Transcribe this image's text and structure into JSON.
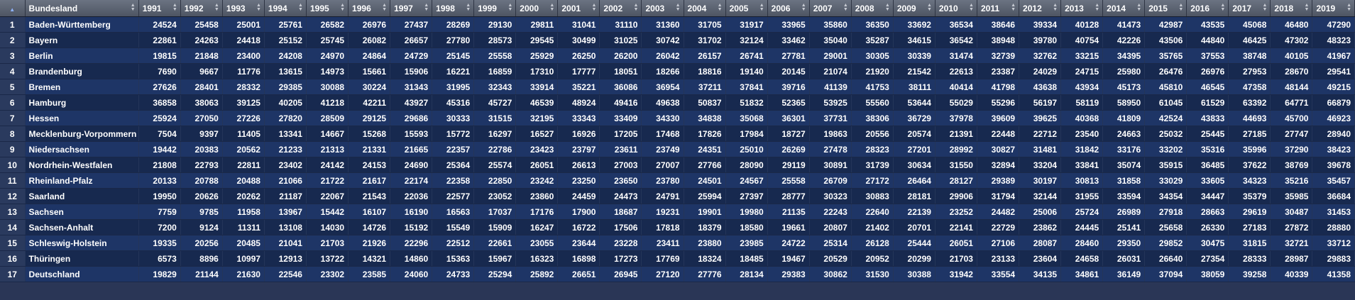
{
  "table": {
    "columns": [
      "Bundesland",
      "1991",
      "1992",
      "1993",
      "1994",
      "1995",
      "1996",
      "1997",
      "1998",
      "1999",
      "2000",
      "2001",
      "2002",
      "2003",
      "2004",
      "2005",
      "2006",
      "2007",
      "2008",
      "2009",
      "2010",
      "2011",
      "2012",
      "2013",
      "2014",
      "2015",
      "2016",
      "2017",
      "2018",
      "2019"
    ],
    "rows": [
      {
        "n": "1",
        "name": "Baden-Württemberg",
        "v": [
          "24524",
          "25458",
          "25001",
          "25761",
          "26582",
          "26976",
          "27437",
          "28269",
          "29130",
          "29811",
          "31041",
          "31110",
          "31360",
          "31705",
          "31917",
          "33965",
          "35860",
          "36350",
          "33692",
          "36534",
          "38646",
          "39334",
          "40128",
          "41473",
          "42987",
          "43535",
          "45068",
          "46480",
          "47290"
        ]
      },
      {
        "n": "2",
        "name": "Bayern",
        "v": [
          "22861",
          "24263",
          "24418",
          "25152",
          "25745",
          "26082",
          "26657",
          "27780",
          "28573",
          "29545",
          "30499",
          "31025",
          "30742",
          "31702",
          "32124",
          "33462",
          "35040",
          "35287",
          "34615",
          "36542",
          "38948",
          "39780",
          "40754",
          "42226",
          "43506",
          "44840",
          "46425",
          "47302",
          "48323"
        ]
      },
      {
        "n": "3",
        "name": "Berlin",
        "v": [
          "19815",
          "21848",
          "23400",
          "24208",
          "24970",
          "24864",
          "24729",
          "25145",
          "25558",
          "25929",
          "26250",
          "26200",
          "26042",
          "26157",
          "26741",
          "27781",
          "29001",
          "30305",
          "30339",
          "31474",
          "32739",
          "32762",
          "33215",
          "34395",
          "35765",
          "37553",
          "38748",
          "40105",
          "41967"
        ]
      },
      {
        "n": "4",
        "name": "Brandenburg",
        "v": [
          "7690",
          "9667",
          "11776",
          "13615",
          "14973",
          "15661",
          "15906",
          "16221",
          "16859",
          "17310",
          "17777",
          "18051",
          "18266",
          "18816",
          "19140",
          "20145",
          "21074",
          "21920",
          "21542",
          "22613",
          "23387",
          "24029",
          "24715",
          "25980",
          "26476",
          "26976",
          "27953",
          "28670",
          "29541"
        ]
      },
      {
        "n": "5",
        "name": "Bremen",
        "v": [
          "27626",
          "28401",
          "28332",
          "29385",
          "30088",
          "30224",
          "31343",
          "31995",
          "32343",
          "33914",
          "35221",
          "36086",
          "36954",
          "37211",
          "37841",
          "39716",
          "41139",
          "41753",
          "38111",
          "40414",
          "41798",
          "43638",
          "43934",
          "45173",
          "45810",
          "46545",
          "47358",
          "48144",
          "49215"
        ]
      },
      {
        "n": "6",
        "name": "Hamburg",
        "v": [
          "36858",
          "38063",
          "39125",
          "40205",
          "41218",
          "42211",
          "43927",
          "45316",
          "45727",
          "46539",
          "48924",
          "49416",
          "49638",
          "50837",
          "51832",
          "52365",
          "53925",
          "55560",
          "53644",
          "55029",
          "55296",
          "56197",
          "58119",
          "58950",
          "61045",
          "61529",
          "63392",
          "64771",
          "66879"
        ]
      },
      {
        "n": "7",
        "name": "Hessen",
        "v": [
          "25924",
          "27050",
          "27226",
          "27820",
          "28509",
          "29125",
          "29686",
          "30333",
          "31515",
          "32195",
          "33343",
          "33409",
          "34330",
          "34838",
          "35068",
          "36301",
          "37731",
          "38306",
          "36729",
          "37978",
          "39609",
          "39625",
          "40368",
          "41809",
          "42524",
          "43833",
          "44693",
          "45700",
          "46923"
        ]
      },
      {
        "n": "8",
        "name": "Mecklenburg-Vorpommern",
        "v": [
          "7504",
          "9397",
          "11405",
          "13341",
          "14667",
          "15268",
          "15593",
          "15772",
          "16297",
          "16527",
          "16926",
          "17205",
          "17468",
          "17826",
          "17984",
          "18727",
          "19863",
          "20556",
          "20574",
          "21391",
          "22448",
          "22712",
          "23540",
          "24663",
          "25032",
          "25445",
          "27185",
          "27747",
          "28940"
        ]
      },
      {
        "n": "9",
        "name": "Niedersachsen",
        "v": [
          "19442",
          "20383",
          "20562",
          "21233",
          "21313",
          "21331",
          "21665",
          "22357",
          "22786",
          "23423",
          "23797",
          "23611",
          "23749",
          "24351",
          "25010",
          "26269",
          "27478",
          "28323",
          "27201",
          "28992",
          "30827",
          "31481",
          "31842",
          "33176",
          "33202",
          "35316",
          "35996",
          "37290",
          "38423"
        ]
      },
      {
        "n": "10",
        "name": "Nordrhein-Westfalen",
        "v": [
          "21808",
          "22793",
          "22811",
          "23402",
          "24142",
          "24153",
          "24690",
          "25364",
          "25574",
          "26051",
          "26613",
          "27003",
          "27007",
          "27766",
          "28090",
          "29119",
          "30891",
          "31739",
          "30634",
          "31550",
          "32894",
          "33204",
          "33841",
          "35074",
          "35915",
          "36485",
          "37622",
          "38769",
          "39678"
        ]
      },
      {
        "n": "11",
        "name": "Rheinland-Pfalz",
        "v": [
          "20133",
          "20788",
          "20488",
          "21066",
          "21722",
          "21617",
          "22174",
          "22358",
          "22850",
          "23242",
          "23250",
          "23650",
          "23780",
          "24501",
          "24567",
          "25558",
          "26709",
          "27172",
          "26464",
          "28127",
          "29389",
          "30197",
          "30813",
          "31858",
          "33029",
          "33605",
          "34323",
          "35216",
          "35457"
        ]
      },
      {
        "n": "12",
        "name": "Saarland",
        "v": [
          "19950",
          "20626",
          "20262",
          "21187",
          "22067",
          "21543",
          "22036",
          "22577",
          "23052",
          "23860",
          "24459",
          "24473",
          "24791",
          "25994",
          "27397",
          "28777",
          "30323",
          "30883",
          "28181",
          "29906",
          "31794",
          "32144",
          "31955",
          "33594",
          "34354",
          "34447",
          "35379",
          "35985",
          "36684"
        ]
      },
      {
        "n": "13",
        "name": "Sachsen",
        "v": [
          "7759",
          "9785",
          "11958",
          "13967",
          "15442",
          "16107",
          "16190",
          "16563",
          "17037",
          "17176",
          "17900",
          "18687",
          "19231",
          "19901",
          "19980",
          "21135",
          "22243",
          "22640",
          "22139",
          "23252",
          "24482",
          "25006",
          "25724",
          "26989",
          "27918",
          "28663",
          "29619",
          "30487",
          "31453"
        ]
      },
      {
        "n": "14",
        "name": "Sachsen-Anhalt",
        "v": [
          "7200",
          "9124",
          "11311",
          "13108",
          "14030",
          "14726",
          "15192",
          "15549",
          "15909",
          "16247",
          "16722",
          "17506",
          "17818",
          "18379",
          "18580",
          "19661",
          "20807",
          "21402",
          "20701",
          "22141",
          "22729",
          "23862",
          "24445",
          "25141",
          "25658",
          "26330",
          "27183",
          "27872",
          "28880"
        ]
      },
      {
        "n": "15",
        "name": "Schleswig-Holstein",
        "v": [
          "19335",
          "20256",
          "20485",
          "21041",
          "21703",
          "21926",
          "22296",
          "22512",
          "22661",
          "23055",
          "23644",
          "23228",
          "23411",
          "23880",
          "23985",
          "24722",
          "25314",
          "26128",
          "25444",
          "26051",
          "27106",
          "28087",
          "28460",
          "29350",
          "29852",
          "30475",
          "31815",
          "32721",
          "33712"
        ]
      },
      {
        "n": "16",
        "name": "Thüringen",
        "v": [
          "6573",
          "8896",
          "10997",
          "12913",
          "13722",
          "14321",
          "14860",
          "15363",
          "15967",
          "16323",
          "16898",
          "17273",
          "17769",
          "18324",
          "18485",
          "19467",
          "20529",
          "20952",
          "20299",
          "21703",
          "23133",
          "23604",
          "24658",
          "26031",
          "26640",
          "27354",
          "28333",
          "28987",
          "29883"
        ]
      },
      {
        "n": "17",
        "name": "Deutschland",
        "v": [
          "19829",
          "21144",
          "21630",
          "22546",
          "23302",
          "23585",
          "24060",
          "24733",
          "25294",
          "25892",
          "26651",
          "26945",
          "27120",
          "27776",
          "28134",
          "29383",
          "30862",
          "31530",
          "30388",
          "31942",
          "33554",
          "34135",
          "34861",
          "36149",
          "37094",
          "38059",
          "39258",
          "40339",
          "41358"
        ]
      }
    ]
  },
  "colors": {
    "header_bg": "#5a6170",
    "row_odd": "#1e3566",
    "row_even": "#17294f",
    "text": "#ffffff",
    "accent": "#8fb4ff"
  },
  "icons": {
    "index_sort": "sort-ascending-icon",
    "column_sort": "sort-both-icon"
  }
}
